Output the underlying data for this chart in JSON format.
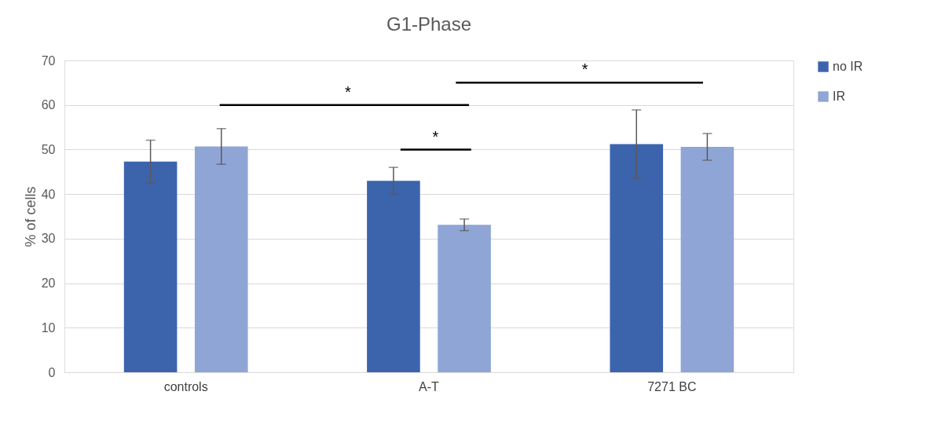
{
  "chart_data": {
    "type": "bar",
    "title": "G1-Phase",
    "ylabel": "% of cells",
    "categories": [
      "controls",
      "A-T",
      "7271 BC"
    ],
    "series": [
      {
        "name": "no IR",
        "color": "#3c64ad",
        "values": [
          47.3,
          43.0,
          51.2
        ],
        "errors": [
          4.8,
          3.0,
          7.7
        ]
      },
      {
        "name": "IR",
        "color": "#8fa5d5",
        "values": [
          50.7,
          33.1,
          50.6
        ],
        "errors": [
          4.0,
          1.3,
          3.0
        ]
      }
    ],
    "ylim": [
      0,
      70
    ],
    "yticks": [
      0,
      10,
      20,
      30,
      40,
      50,
      60,
      70
    ],
    "grid": "y",
    "legend": "right",
    "annotations": [
      "*",
      "*",
      "*"
    ]
  }
}
